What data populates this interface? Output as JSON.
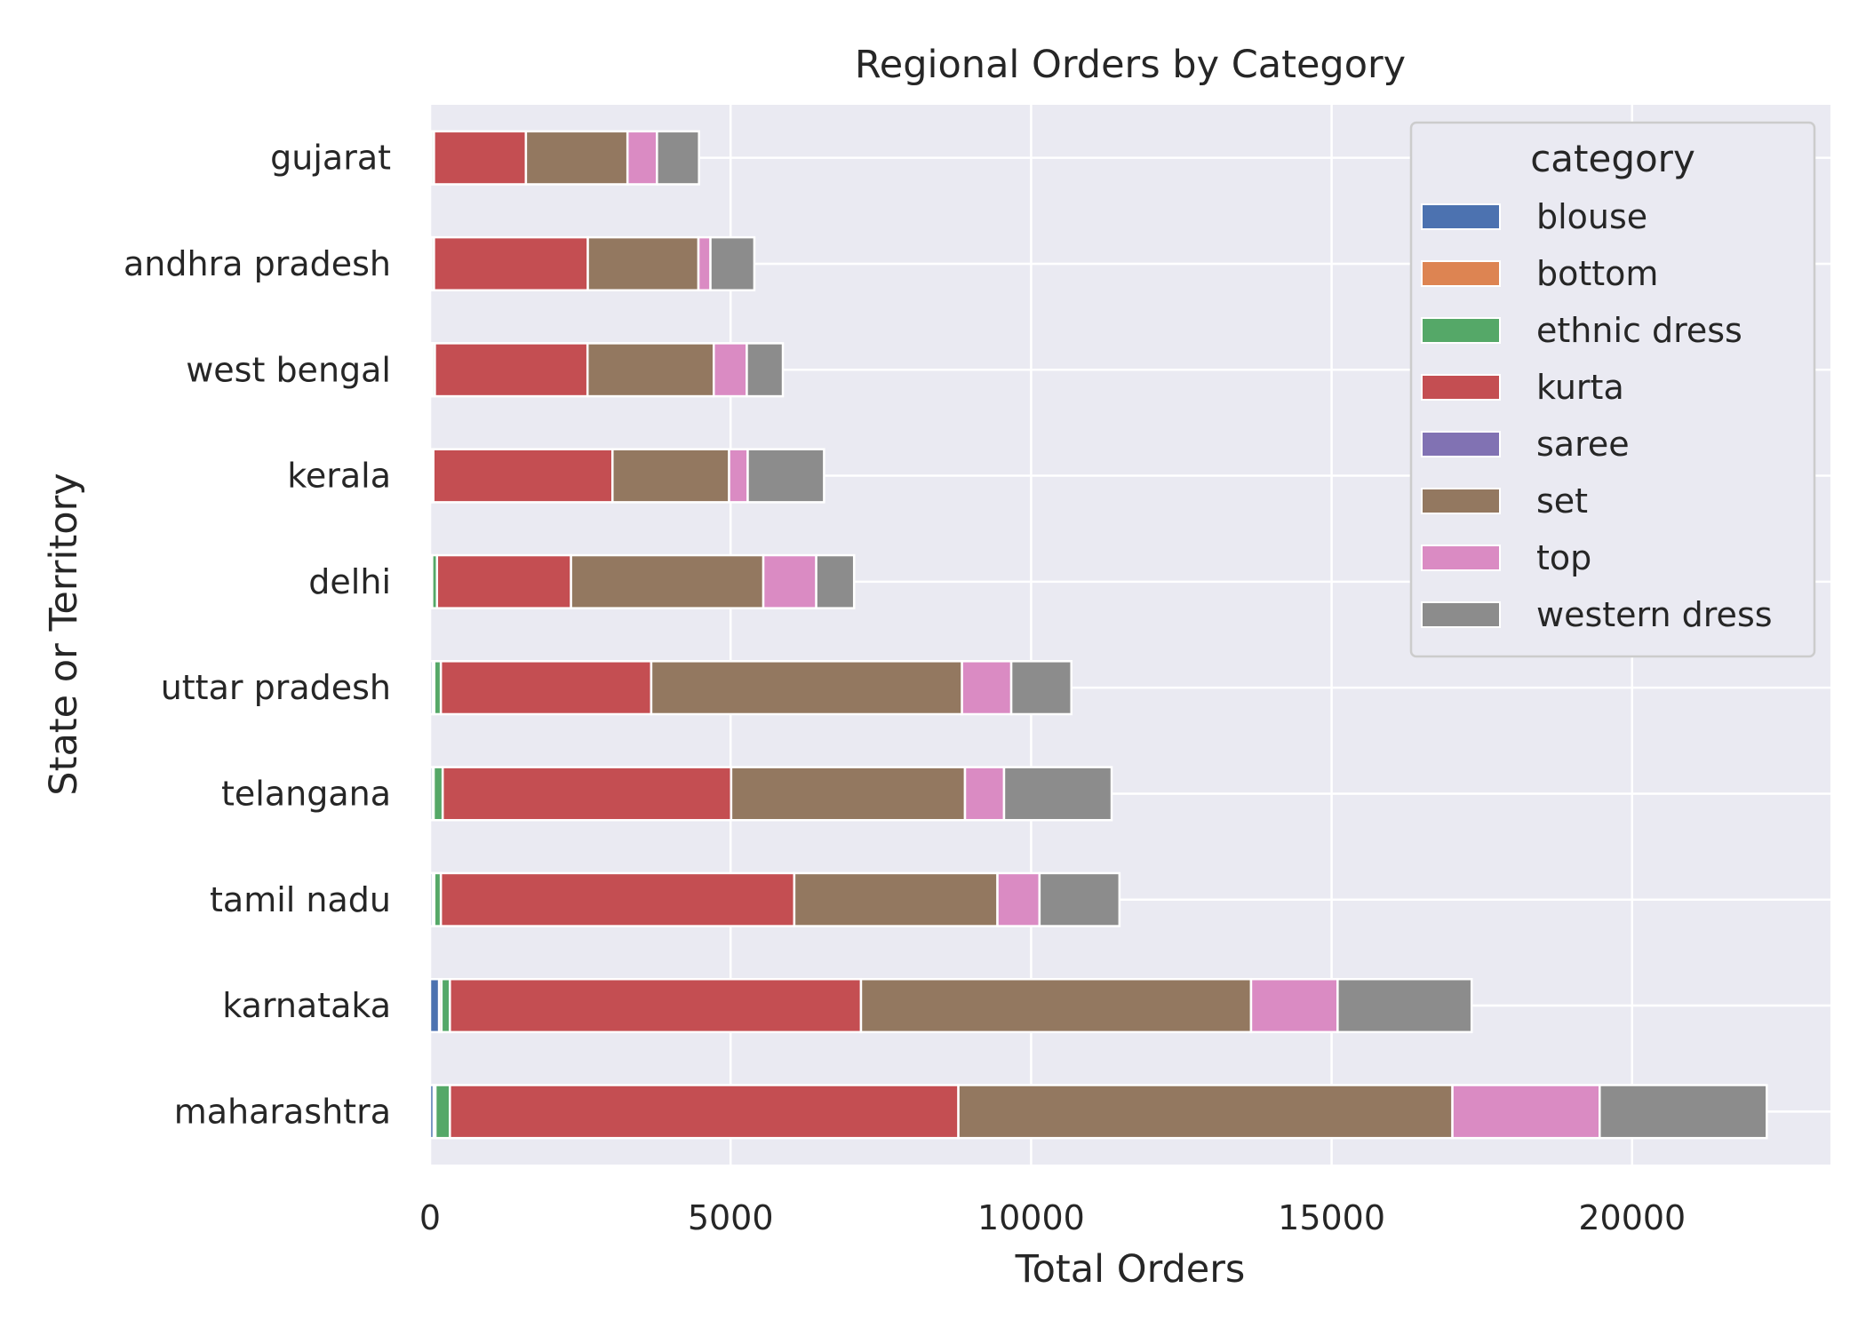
{
  "chart_data": {
    "type": "bar",
    "orientation": "horizontal",
    "stacked": true,
    "title": "Regional Orders by Category",
    "xlabel": "Total Orders",
    "ylabel": "State or Territory",
    "xlim": [
      0,
      23300
    ],
    "xticks": [
      0,
      5000,
      10000,
      15000,
      20000
    ],
    "xtick_labels": [
      "0",
      "5000",
      "10000",
      "15000",
      "20000"
    ],
    "grid": true,
    "legend": {
      "title": "category",
      "placement": "top-right"
    },
    "categories": [
      "gujarat",
      "andhra pradesh",
      "west bengal",
      "kerala",
      "delhi",
      "uttar pradesh",
      "telangana",
      "tamil nadu",
      "karnataka",
      "maharashtra"
    ],
    "series": [
      {
        "name": "blouse",
        "color": "#4c72b0",
        "values": [
          15,
          15,
          30,
          15,
          20,
          40,
          40,
          40,
          150,
          60
        ]
      },
      {
        "name": "bottom",
        "color": "#dd8452",
        "values": [
          10,
          10,
          10,
          10,
          15,
          30,
          20,
          30,
          40,
          30
        ]
      },
      {
        "name": "ethnic dress",
        "color": "#55a868",
        "values": [
          40,
          40,
          40,
          30,
          80,
          110,
          150,
          110,
          140,
          240
        ]
      },
      {
        "name": "kurta",
        "color": "#c44e52",
        "values": [
          1530,
          2560,
          2540,
          2980,
          2230,
          3500,
          4800,
          5880,
          6840,
          8460
        ]
      },
      {
        "name": "saree",
        "color": "#8172b3",
        "values": [
          0,
          0,
          0,
          0,
          0,
          0,
          0,
          0,
          0,
          0
        ]
      },
      {
        "name": "set",
        "color": "#937860",
        "values": [
          1690,
          1840,
          2100,
          1940,
          3200,
          5170,
          3890,
          3380,
          6490,
          8220
        ]
      },
      {
        "name": "top",
        "color": "#da8bc3",
        "values": [
          490,
          200,
          550,
          310,
          880,
          820,
          650,
          700,
          1440,
          2450
        ]
      },
      {
        "name": "western dress",
        "color": "#8c8c8c",
        "values": [
          700,
          730,
          600,
          1270,
          630,
          1000,
          1790,
          1330,
          2230,
          2780
        ]
      }
    ]
  }
}
